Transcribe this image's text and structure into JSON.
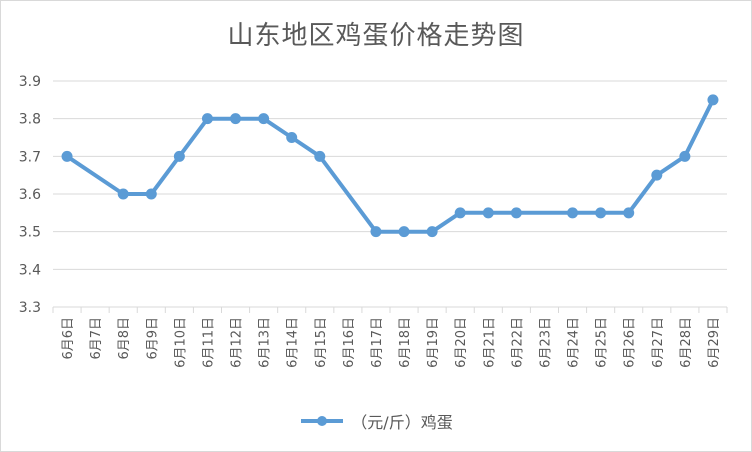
{
  "chart_data": {
    "type": "line",
    "title": "山东地区鸡蛋价格走势图",
    "xlabel": "",
    "ylabel": "",
    "ylim": [
      3.3,
      3.9
    ],
    "yticks": [
      "3.3",
      "3.4",
      "3.5",
      "3.6",
      "3.7",
      "3.8",
      "3.9"
    ],
    "categories": [
      "6月6日",
      "6月7日",
      "6月8日",
      "6月9日",
      "6月10日",
      "6月11日",
      "6月12日",
      "6月13日",
      "6月14日",
      "6月15日",
      "6月16日",
      "6月17日",
      "6月18日",
      "6月19日",
      "6月20日",
      "6月21日",
      "6月22日",
      "6月23日",
      "6月24日",
      "6月25日",
      "6月26日",
      "6月27日",
      "6月28日",
      "6月29日"
    ],
    "series": [
      {
        "name": "（元/斤）鸡蛋",
        "color": "#5b9bd5",
        "values": [
          3.7,
          null,
          3.6,
          3.6,
          3.7,
          3.8,
          3.8,
          3.8,
          3.75,
          3.7,
          null,
          3.5,
          3.5,
          3.5,
          3.55,
          3.55,
          3.55,
          null,
          3.55,
          3.55,
          3.55,
          3.65,
          3.7,
          3.85
        ]
      }
    ],
    "grid": true,
    "legend_position": "bottom"
  }
}
